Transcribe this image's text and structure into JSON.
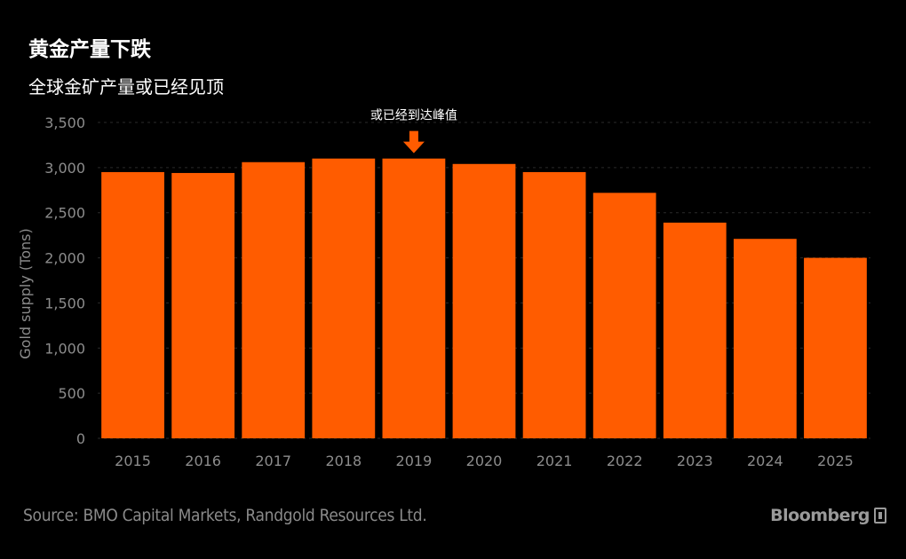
{
  "header": {
    "title": "黄金产量下跌",
    "subtitle": "全球金矿产量或已经见顶"
  },
  "annotation": {
    "text": "或已经到达峰值",
    "category": "2019",
    "color": "#ff5c00"
  },
  "footer": {
    "source": "Source: BMO Capital Markets, Randgold Resources Ltd.",
    "brand": "Bloomberg"
  },
  "colors": {
    "background": "#000000",
    "bar": "#ff5c00",
    "grid": "#2a2a2a",
    "tick_text": "#8c8c8c"
  },
  "chart_data": {
    "type": "bar",
    "title": "",
    "xlabel": "",
    "ylabel": "Gold supply (Tons)",
    "categories": [
      "2015",
      "2016",
      "2017",
      "2018",
      "2019",
      "2020",
      "2021",
      "2022",
      "2023",
      "2024",
      "2025"
    ],
    "series": [
      {
        "values": [
          2950,
          2940,
          3060,
          3100,
          3100,
          3040,
          2950,
          2720,
          2390,
          2210,
          2000
        ]
      }
    ],
    "ylim": [
      0,
      3500
    ],
    "yticks": [
      0,
      500,
      1000,
      1500,
      2000,
      2500,
      3000,
      3500
    ],
    "ytick_labels": [
      "0",
      "500",
      "1,000",
      "1,500",
      "2,000",
      "2,500",
      "3,000",
      "3,500"
    ],
    "grid": true,
    "legend": "none"
  }
}
